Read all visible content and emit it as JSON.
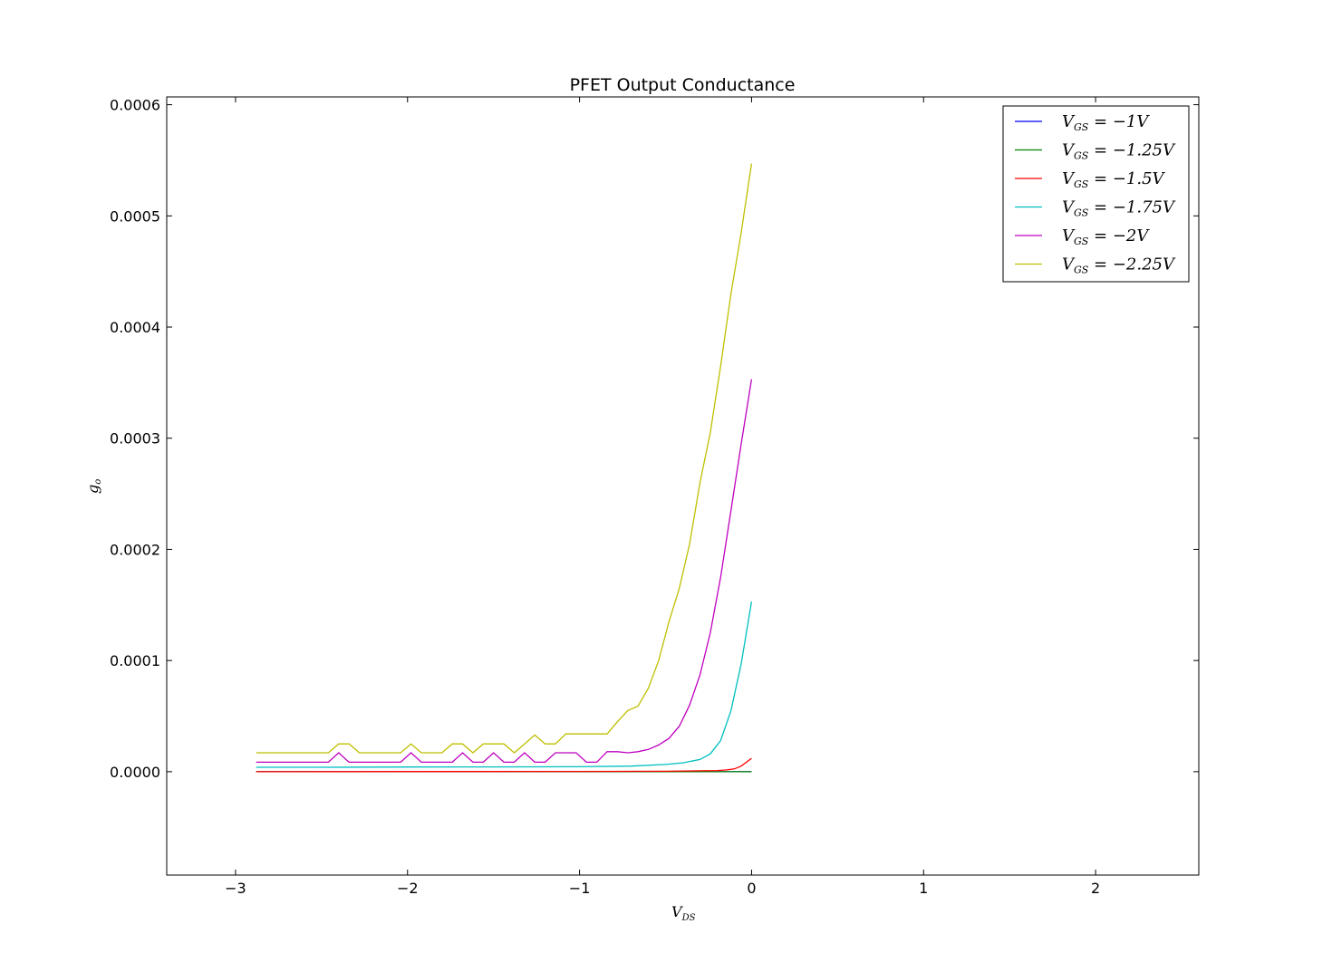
{
  "chart_data": {
    "type": "line",
    "title": "PFET Output Conductance",
    "xlabel": {
      "main": "V",
      "sub": "DS"
    },
    "ylabel": {
      "main": "g",
      "sub": "o"
    },
    "xlim": [
      -3.4,
      2.6
    ],
    "ylim": [
      -9.3e-05,
      0.000607
    ],
    "xticks": [
      -3,
      -2,
      -1,
      0,
      1,
      2
    ],
    "xtick_labels": [
      "−3",
      "−2",
      "−1",
      "0",
      "1",
      "2"
    ],
    "yticks": [
      0,
      0.0001,
      0.0002,
      0.0003,
      0.0004,
      0.0005,
      0.0006
    ],
    "ytick_labels": [
      "0.0000",
      "0.0001",
      "0.0002",
      "0.0003",
      "0.0004",
      "0.0005",
      "0.0006"
    ],
    "legend_position": "top-right",
    "series": [
      {
        "name": "V_GS = -1V",
        "legend": {
          "pre": "V",
          "sub": "GS",
          "post": " = −1V"
        },
        "color": "#0000ff",
        "x": [
          -2.88,
          0
        ],
        "y": [
          0.0,
          0.0
        ]
      },
      {
        "name": "V_GS = -1.25V",
        "legend": {
          "pre": "V",
          "sub": "GS",
          "post": " = −1.25V"
        },
        "color": "#008000",
        "x": [
          -2.88,
          0
        ],
        "y": [
          0.0,
          0.0
        ]
      },
      {
        "name": "V_GS = -1.5V",
        "legend": {
          "pre": "V",
          "sub": "GS",
          "post": " = −1.5V"
        },
        "color": "#ff0000",
        "x": [
          -2.88,
          -1.0,
          -0.5,
          -0.3,
          -0.2,
          -0.15,
          -0.1,
          -0.06,
          0.0
        ],
        "y": [
          0.0,
          2e-07,
          4e-07,
          8e-07,
          1e-06,
          1.5e-06,
          2.5e-06,
          5e-06,
          1.2e-05
        ]
      },
      {
        "name": "V_GS = -1.75V",
        "legend": {
          "pre": "V",
          "sub": "GS",
          "post": " = −1.75V"
        },
        "color": "#00bfbf",
        "x": [
          -2.88,
          -2.5,
          -2.0,
          -1.5,
          -1.0,
          -0.7,
          -0.5,
          -0.4,
          -0.3,
          -0.24,
          -0.18,
          -0.12,
          -0.06,
          0.0
        ],
        "y": [
          4e-06,
          4e-06,
          4.2e-06,
          4.3e-06,
          4.5e-06,
          5e-06,
          6.5e-06,
          8e-06,
          1.1e-05,
          1.6e-05,
          2.8e-05,
          5.5e-05,
          9.7e-05,
          0.000153
        ]
      },
      {
        "name": "V_GS = -2V",
        "legend": {
          "pre": "V",
          "sub": "GS",
          "post": " = −2V"
        },
        "color": "#bf00bf",
        "x": [
          -2.88,
          -2.46,
          -2.4,
          -2.34,
          -2.04,
          -1.98,
          -1.92,
          -1.74,
          -1.68,
          -1.62,
          -1.56,
          -1.5,
          -1.44,
          -1.38,
          -1.32,
          -1.26,
          -1.2,
          -1.14,
          -1.08,
          -1.02,
          -0.96,
          -0.9,
          -0.84,
          -0.78,
          -0.72,
          -0.66,
          -0.6,
          -0.54,
          -0.48,
          -0.42,
          -0.36,
          -0.3,
          -0.24,
          -0.18,
          -0.12,
          -0.06,
          0.0
        ],
        "y": [
          8.5e-06,
          8.5e-06,
          1.7e-05,
          8.5e-06,
          8.5e-06,
          1.7e-05,
          8.5e-06,
          8.5e-06,
          1.7e-05,
          8.5e-06,
          8.5e-06,
          1.7e-05,
          8.5e-06,
          8.5e-06,
          1.7e-05,
          8.5e-06,
          8.5e-06,
          1.7e-05,
          1.7e-05,
          1.7e-05,
          8.5e-06,
          8.5e-06,
          1.8e-05,
          1.8e-05,
          1.7e-05,
          1.8e-05,
          2e-05,
          2.4e-05,
          3e-05,
          4.1e-05,
          6e-05,
          8.7e-05,
          0.000125,
          0.000175,
          0.000235,
          0.000295,
          0.000353
        ]
      },
      {
        "name": "V_GS = -2.25V",
        "legend": {
          "pre": "V",
          "sub": "GS",
          "post": " = −2.25V"
        },
        "color": "#bfbf00",
        "x": [
          -2.88,
          -2.46,
          -2.4,
          -2.34,
          -2.28,
          -2.04,
          -1.98,
          -1.92,
          -1.8,
          -1.74,
          -1.68,
          -1.62,
          -1.56,
          -1.44,
          -1.38,
          -1.32,
          -1.26,
          -1.2,
          -1.14,
          -1.08,
          -1.02,
          -0.9,
          -0.84,
          -0.78,
          -0.72,
          -0.66,
          -0.6,
          -0.54,
          -0.48,
          -0.42,
          -0.36,
          -0.3,
          -0.24,
          -0.18,
          -0.12,
          -0.06,
          0.0
        ],
        "y": [
          1.7e-05,
          1.7e-05,
          2.5e-05,
          2.5e-05,
          1.7e-05,
          1.7e-05,
          2.5e-05,
          1.7e-05,
          1.7e-05,
          2.5e-05,
          2.5e-05,
          1.7e-05,
          2.5e-05,
          2.5e-05,
          1.7e-05,
          2.5e-05,
          3.3e-05,
          2.5e-05,
          2.5e-05,
          3.4e-05,
          3.4e-05,
          3.4e-05,
          3.4e-05,
          4.5e-05,
          5.5e-05,
          5.9e-05,
          7.5e-05,
          0.0001,
          0.000135,
          0.000165,
          0.000205,
          0.00026,
          0.000305,
          0.000365,
          0.00043,
          0.000485,
          0.000547
        ]
      }
    ]
  }
}
